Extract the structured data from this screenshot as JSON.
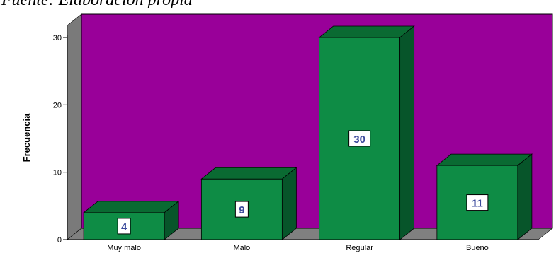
{
  "caption": "Fuente: Elaboración propia",
  "chart_data": {
    "type": "bar",
    "categories": [
      "Muy malo",
      "Malo",
      "Regular",
      "Bueno"
    ],
    "values": [
      4,
      9,
      30,
      11
    ],
    "data_labels": [
      "4",
      "9",
      "30",
      "11"
    ],
    "ylabel": "Frecuencia",
    "xlabel": "",
    "title": "",
    "ylim": [
      0,
      30
    ],
    "yticks": [
      0,
      10,
      20,
      30
    ],
    "ytick_labels": [
      "0",
      "10",
      "20",
      "30"
    ],
    "style": "3d",
    "grid": false,
    "colors": {
      "wall": "#990099",
      "side_wall": "#7a7a7a",
      "floor": "#808080",
      "bar_front": "#0e8c45",
      "bar_top": "#0a6a32",
      "bar_side": "#07552a",
      "data_label_text": "#3b4a9c"
    }
  }
}
